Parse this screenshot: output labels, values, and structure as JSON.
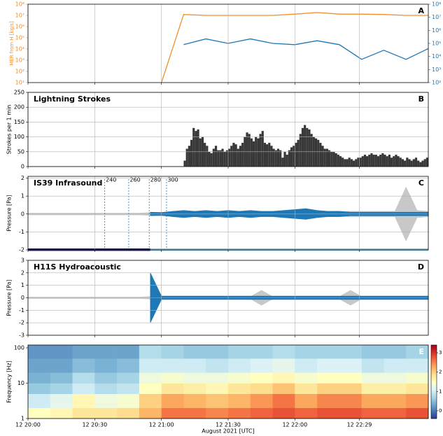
{
  "chart_data": [
    {
      "type": "line",
      "label": "A",
      "ylabel": "MER from H [kg/s]",
      "ycolor": "#f28e2b",
      "y2color": "#1f77b4",
      "xlim": [
        0,
        180
      ],
      "xticks": [
        0,
        30,
        60,
        90,
        120,
        149
      ],
      "grid": true,
      "log": true,
      "ylim": [
        10,
        100000000
      ],
      "yticks": [
        {
          "value": 10,
          "label": "10¹"
        },
        {
          "value": 100,
          "label": "10²"
        },
        {
          "value": 1000,
          "label": "10³"
        },
        {
          "value": 10000,
          "label": "10⁴"
        },
        {
          "value": 100000,
          "label": "10⁵"
        },
        {
          "value": 1000000,
          "label": "10⁶"
        },
        {
          "value": 10000000,
          "label": "10⁷"
        },
        {
          "value": 100000000,
          "label": "10⁸"
        }
      ],
      "y2lim": [
        100,
        100000000
      ],
      "y2ticks": [
        {
          "value": 100,
          "label": "10²"
        },
        {
          "value": 1000,
          "label": "10³"
        },
        {
          "value": 10000,
          "label": "10⁴"
        },
        {
          "value": 100000,
          "label": "10⁵"
        },
        {
          "value": 1000000,
          "label": "10⁶"
        },
        {
          "value": 10000000,
          "label": "10⁷"
        },
        {
          "value": 100000000,
          "label": "10⁸"
        }
      ],
      "series": [
        {
          "color": "#f28e2b",
          "x": [
            60,
            70,
            80,
            90,
            100,
            110,
            120,
            130,
            140,
            150,
            160,
            170,
            180
          ],
          "values": [
            10,
            12000000,
            10000000,
            10000000,
            10000000,
            10000000,
            13000000,
            18000000,
            13000000,
            13000000,
            12000000,
            10000000,
            10000000
          ]
        },
        {
          "color": "#1f77b4",
          "axis": "y2",
          "x": [
            70,
            80,
            90,
            100,
            110,
            120,
            130,
            140,
            150,
            160,
            170,
            180
          ],
          "values": [
            80000,
            220000,
            100000,
            220000,
            100000,
            80000,
            160000,
            80000,
            6000,
            30000,
            6000,
            40000
          ]
        }
      ]
    },
    {
      "type": "histogram",
      "label": "B",
      "title": "Lightning Strokes",
      "ylabel": "Strokes per 1 min",
      "color": "#383838",
      "xlim": [
        0,
        180
      ],
      "xticks": [
        0,
        30,
        60,
        90,
        120,
        149
      ],
      "grid": true,
      "ylim": [
        0,
        250
      ],
      "yticks": [
        0,
        50,
        100,
        150,
        200,
        250
      ],
      "bins": [
        70,
        71,
        72,
        73,
        74,
        75,
        76,
        77,
        78,
        79,
        80,
        81,
        82,
        83,
        84,
        85,
        86,
        87,
        88,
        89,
        90,
        91,
        92,
        93,
        94,
        95,
        96,
        97,
        98,
        99,
        100,
        101,
        102,
        103,
        104,
        105,
        106,
        107,
        108,
        109,
        110,
        111,
        112,
        113,
        114,
        115,
        116,
        117,
        118,
        119,
        120,
        121,
        122,
        123,
        124,
        125,
        126,
        127,
        128,
        129,
        130,
        131,
        132,
        133,
        134,
        135,
        136,
        137,
        138,
        139,
        140,
        141,
        142,
        143,
        144,
        145,
        146,
        147,
        148,
        149,
        150,
        151,
        152,
        153,
        154,
        155,
        156,
        157,
        158,
        159,
        160,
        161,
        162,
        163,
        164,
        165,
        166,
        167,
        168,
        169,
        170,
        171,
        172,
        173,
        174,
        175,
        176,
        177,
        178,
        179,
        180
      ],
      "values": [
        20,
        60,
        70,
        90,
        130,
        120,
        125,
        95,
        100,
        80,
        70,
        50,
        45,
        60,
        70,
        55,
        55,
        60,
        50,
        55,
        60,
        70,
        80,
        75,
        60,
        70,
        80,
        100,
        115,
        110,
        95,
        85,
        100,
        95,
        110,
        120,
        80,
        75,
        80,
        70,
        60,
        55,
        60,
        55,
        30,
        50,
        40,
        55,
        65,
        70,
        80,
        90,
        110,
        130,
        140,
        130,
        125,
        110,
        100,
        95,
        90,
        80,
        70,
        60,
        60,
        55,
        50,
        50,
        45,
        40,
        35,
        30,
        25,
        25,
        30,
        25,
        20,
        25,
        30,
        30,
        35,
        40,
        35,
        40,
        45,
        40,
        40,
        35,
        40,
        45,
        40,
        35,
        40,
        30,
        35,
        40,
        35,
        30,
        25,
        20,
        30,
        25,
        20,
        25,
        30,
        20,
        15,
        20,
        25,
        30
      ]
    },
    {
      "type": "waveform",
      "label": "C",
      "title": "IS39 Infrasound",
      "ylabel": "Pressure [Pa]",
      "xlim": [
        0,
        180
      ],
      "xticks": [
        0,
        30,
        60,
        90,
        120,
        149
      ],
      "grid": true,
      "ylim": [
        -2,
        2.1
      ],
      "yticks": [
        -2,
        -1,
        0,
        1,
        2
      ],
      "x": [
        0,
        5,
        10,
        15,
        20,
        25,
        30,
        35,
        40,
        45,
        50,
        55,
        60,
        65,
        70,
        75,
        80,
        85,
        90,
        95,
        100,
        105,
        110,
        115,
        120,
        125,
        130,
        135,
        140,
        145,
        150,
        155,
        160,
        165,
        170,
        175,
        180
      ],
      "series": [
        {
          "color": "#c8c8c8",
          "values": [
            0.05,
            0.05,
            0.05,
            0.05,
            0.05,
            0.05,
            0.05,
            0.05,
            0.05,
            0.05,
            0.05,
            0.08,
            0.1,
            0.1,
            0.1,
            0.1,
            0.1,
            0.1,
            0.1,
            0.1,
            0.1,
            0.1,
            0.1,
            0.1,
            0.15,
            0.15,
            0.15,
            0.15,
            0.15,
            0.15,
            0.15,
            0.15,
            0.15,
            0.15,
            1.5,
            0.2,
            0.15
          ]
        },
        {
          "color": "#1f77b4",
          "values": [
            null,
            null,
            null,
            null,
            null,
            null,
            null,
            null,
            null,
            null,
            null,
            0.1,
            0.08,
            0.15,
            0.2,
            0.15,
            0.2,
            0.15,
            0.2,
            0.15,
            0.2,
            0.15,
            0.15,
            0.2,
            0.25,
            0.3,
            0.2,
            0.15,
            0.15,
            0.1,
            0.1,
            0.1,
            0.1,
            0.1,
            0.1,
            0.1,
            0.1
          ]
        }
      ],
      "annotations": [
        {
          "x": 34.5,
          "label": "240"
        },
        {
          "x": 45.3,
          "label": "260"
        },
        {
          "x": 54.5,
          "label": "280"
        },
        {
          "x": 62.3,
          "label": "300"
        }
      ],
      "bands": [
        {
          "x": [
            0,
            55
          ],
          "color": "#1a1a6e"
        },
        {
          "x": [
            55,
            180
          ],
          "color": "#7ec8e3"
        }
      ]
    },
    {
      "type": "waveform",
      "label": "D",
      "title": "H11S Hydroacoustic",
      "ylabel": "Pressure [Pa]",
      "xlim": [
        0,
        180
      ],
      "xticks": [
        0,
        30,
        60,
        90,
        120,
        149
      ],
      "grid": true,
      "ylim": [
        -3,
        3
      ],
      "yticks": [
        -3,
        -2,
        -1,
        0,
        1,
        2,
        3
      ],
      "x": [
        0,
        5,
        10,
        15,
        20,
        25,
        30,
        35,
        40,
        45,
        50,
        55,
        60,
        65,
        70,
        75,
        80,
        85,
        90,
        95,
        100,
        105,
        110,
        115,
        120,
        125,
        130,
        135,
        140,
        145,
        150,
        155,
        160,
        165,
        170,
        175,
        180
      ],
      "series": [
        {
          "color": "#c8c8c8",
          "values": [
            0.06,
            0.06,
            0.06,
            0.06,
            0.06,
            0.06,
            0.06,
            0.06,
            0.06,
            0.06,
            0.06,
            0.1,
            0.1,
            0.1,
            0.1,
            0.1,
            0.1,
            0.1,
            0.1,
            0.1,
            0.1,
            0.6,
            0.1,
            0.1,
            0.1,
            0.1,
            0.1,
            0.1,
            0.1,
            0.6,
            0.1,
            0.1,
            0.1,
            0.1,
            0.1,
            0.1,
            0.1
          ]
        },
        {
          "color": "#1f77b4",
          "values": [
            null,
            null,
            null,
            null,
            null,
            null,
            null,
            null,
            null,
            null,
            null,
            2.0,
            0.14,
            0.14,
            0.14,
            0.14,
            0.14,
            0.14,
            0.14,
            0.14,
            0.14,
            0.14,
            0.14,
            0.14,
            0.14,
            0.14,
            0.14,
            0.14,
            0.14,
            0.14,
            0.14,
            0.14,
            0.14,
            0.14,
            0.14,
            0.14,
            0.14
          ]
        }
      ]
    },
    {
      "type": "heatmap",
      "label": "E",
      "ylabel": "Frequency [Hz]",
      "xlabel": "August 2021 [UTC]",
      "xlim": [
        0,
        180
      ],
      "xticks": [
        {
          "value": 0,
          "label": "12 20:00"
        },
        {
          "value": 30,
          "label": "12 20:30"
        },
        {
          "value": 60,
          "label": "12 21:00"
        },
        {
          "value": 90,
          "label": "12 21:30"
        },
        {
          "value": 120,
          "label": "12 22:00"
        },
        {
          "value": 149,
          "label": "12 22:29"
        }
      ],
      "log": true,
      "ylim": [
        1,
        120
      ],
      "yticks": [
        1,
        10,
        100
      ],
      "xbins": [
        0,
        10,
        20,
        30,
        40,
        50,
        60,
        70,
        80,
        90,
        100,
        110,
        120,
        130,
        140,
        150,
        160,
        170,
        180
      ],
      "ybins": [
        1,
        2,
        5,
        10,
        20,
        50,
        120
      ],
      "z": [
        [
          1.5,
          1.6,
          1.8,
          1.8,
          1.9,
          2.2,
          2.6,
          2.6,
          2.5,
          2.6,
          2.7,
          2.8,
          2.7,
          2.8,
          2.8,
          2.7,
          2.7,
          2.8
        ],
        [
          1.0,
          1.2,
          1.6,
          1.3,
          1.4,
          2.0,
          2.3,
          2.2,
          2.1,
          2.2,
          2.4,
          2.6,
          2.3,
          2.5,
          2.5,
          2.3,
          2.3,
          2.4
        ],
        [
          0.6,
          0.7,
          1.0,
          0.8,
          0.9,
          1.5,
          1.8,
          1.7,
          1.6,
          1.8,
          1.9,
          2.1,
          1.8,
          2.0,
          2.0,
          1.7,
          1.7,
          1.8
        ],
        [
          0.4,
          0.5,
          0.8,
          0.6,
          0.7,
          1.3,
          1.4,
          1.3,
          1.3,
          1.4,
          1.5,
          1.6,
          1.4,
          1.5,
          1.5,
          1.3,
          1.3,
          1.4
        ],
        [
          0.3,
          0.3,
          0.5,
          0.4,
          0.5,
          1.0,
          1.0,
          1.0,
          0.9,
          1.0,
          1.1,
          1.2,
          1.0,
          1.1,
          1.1,
          0.9,
          1.0,
          1.0
        ],
        [
          0.2,
          0.2,
          0.3,
          0.3,
          0.3,
          0.8,
          0.7,
          0.6,
          0.6,
          0.7,
          0.7,
          0.8,
          0.7,
          0.7,
          0.7,
          0.6,
          0.6,
          0.7
        ]
      ],
      "clim": [
        -0.4,
        3.4
      ],
      "cticks": [
        0,
        1,
        2,
        3
      ]
    }
  ]
}
